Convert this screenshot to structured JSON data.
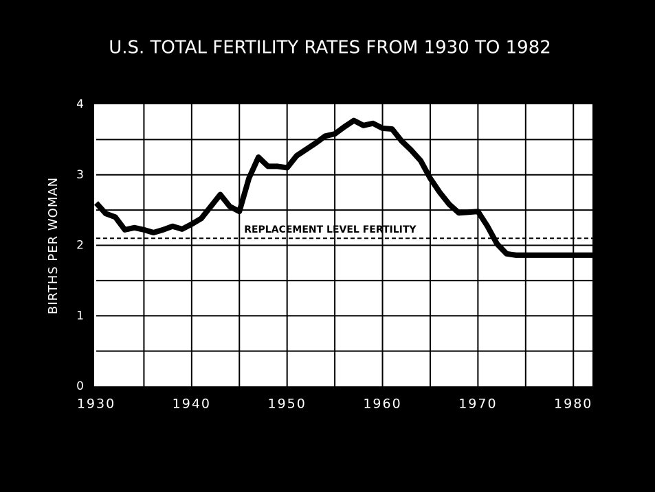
{
  "chart_data": {
    "type": "line",
    "title": "U.S. TOTAL FERTILITY RATES FROM 1930 TO 1982",
    "y_label": "BIRTHS PER WOMAN",
    "x": [
      1930,
      1931,
      1932,
      1933,
      1934,
      1935,
      1936,
      1937,
      1938,
      1939,
      1940,
      1941,
      1942,
      1943,
      1944,
      1945,
      1946,
      1947,
      1948,
      1949,
      1950,
      1951,
      1952,
      1953,
      1954,
      1955,
      1956,
      1957,
      1958,
      1959,
      1960,
      1961,
      1962,
      1963,
      1964,
      1965,
      1966,
      1967,
      1968,
      1969,
      1970,
      1971,
      1972,
      1973,
      1974,
      1975,
      1976,
      1977,
      1978,
      1979,
      1980,
      1981,
      1982
    ],
    "series": [
      {
        "color": "#000000",
        "values": [
          2.6,
          2.45,
          2.4,
          2.22,
          2.25,
          2.22,
          2.18,
          2.22,
          2.27,
          2.23,
          2.3,
          2.38,
          2.55,
          2.72,
          2.55,
          2.48,
          2.95,
          3.25,
          3.12,
          3.12,
          3.1,
          3.27,
          3.36,
          3.45,
          3.55,
          3.58,
          3.68,
          3.77,
          3.7,
          3.73,
          3.66,
          3.65,
          3.48,
          3.35,
          3.2,
          2.95,
          2.75,
          2.58,
          2.46,
          2.47,
          2.48,
          2.27,
          2.02,
          1.88,
          1.86,
          1.86,
          1.86,
          1.86,
          1.86,
          1.86,
          1.86,
          1.86,
          1.86
        ]
      }
    ],
    "annotations": [
      {
        "text": "REPLACEMENT LEVEL FERTILITY",
        "value": 2.1
      }
    ],
    "xlim": [
      1930,
      1982
    ],
    "xticks": [
      1930,
      1940,
      1950,
      1960,
      1970,
      1980
    ],
    "xgrid": [
      1935,
      1940,
      1945,
      1950,
      1955,
      1960,
      1965,
      1970,
      1975,
      1980
    ],
    "ylim": [
      0,
      4
    ],
    "yticks": [
      0,
      1,
      2,
      3,
      4
    ],
    "ygrid": [
      0.5,
      1,
      1.5,
      2,
      2.5,
      3,
      3.5
    ],
    "grid": true
  }
}
